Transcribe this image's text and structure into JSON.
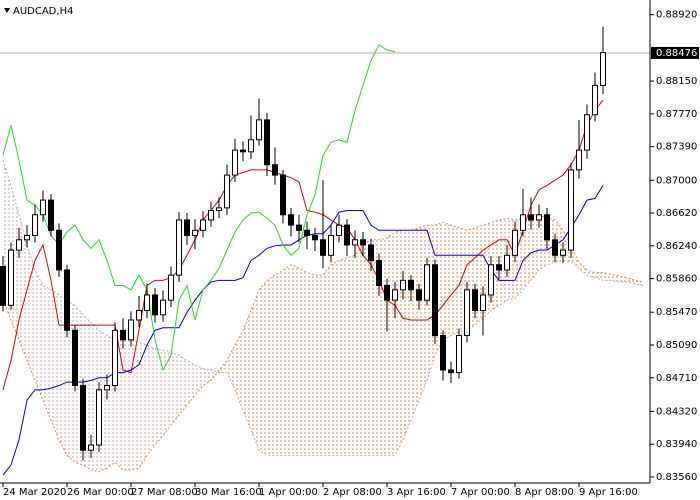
{
  "chart_data": {
    "type": "candlestick",
    "title": "AUDCAD,H4",
    "categories": [
      "24 Mar 2020",
      null,
      null,
      null,
      null,
      null,
      null,
      null,
      "26 Mar 00:00",
      null,
      null,
      null,
      null,
      null,
      null,
      null,
      "27 Mar 08:00",
      null,
      null,
      null,
      null,
      null,
      null,
      null,
      "30 Mar 16:00",
      null,
      null,
      null,
      null,
      null,
      null,
      null,
      "1 Apr 00:00",
      null,
      null,
      null,
      null,
      null,
      null,
      null,
      "2 Apr 08:00",
      null,
      null,
      null,
      null,
      null,
      null,
      null,
      "3 Apr 16:00",
      null,
      null,
      null,
      null,
      null,
      null,
      null,
      "7 Apr 00:00",
      null,
      null,
      null,
      null,
      null,
      null,
      null,
      "8 Apr 08:00",
      null,
      null,
      null,
      null,
      null,
      null,
      null,
      "9 Apr 16:00",
      null,
      null,
      null,
      null,
      null,
      null,
      null,
      null
    ],
    "open": [
      0.86,
      0.8555,
      0.8619,
      0.8631,
      0.8636,
      0.866,
      0.8677,
      0.8642,
      0.8596,
      0.8526,
      0.8462,
      0.8387,
      0.8393,
      0.8457,
      0.8462,
      0.8526,
      0.8515,
      0.8538,
      0.8549,
      0.8567,
      0.8544,
      0.8561,
      0.859,
      0.8654,
      0.8636,
      0.8642,
      0.8654,
      0.8665,
      0.8668,
      0.8706,
      0.8735,
      0.8733,
      0.8747,
      0.877,
      0.8718,
      0.8706,
      0.866,
      0.8648,
      0.8642,
      0.8636,
      0.8631,
      0.8613,
      0.8636,
      0.8648,
      0.8625,
      0.8631,
      0.8625,
      0.8607,
      0.8578,
      0.8561,
      0.8573,
      0.8584,
      0.8573,
      0.8561,
      0.8602,
      0.852,
      0.848,
      0.8477,
      0.852,
      0.8573,
      0.8549,
      0.8567,
      0.8602,
      0.8596,
      0.8613,
      0.8642,
      0.866,
      0.8654,
      0.866,
      0.8631,
      0.8613,
      0.8619,
      0.8712,
      0.8735,
      0.8776,
      0.881,
      null,
      null,
      null,
      null,
      null
    ],
    "high": [
      0.8612,
      0.8628,
      0.8645,
      0.8648,
      0.8672,
      0.8688,
      0.8684,
      0.865,
      0.8602,
      0.8532,
      0.847,
      0.8405,
      0.8466,
      0.8475,
      0.8535,
      0.854,
      0.8548,
      0.8566,
      0.858,
      0.8575,
      0.8572,
      0.86,
      0.8663,
      0.8662,
      0.8655,
      0.8664,
      0.8675,
      0.868,
      0.8718,
      0.8748,
      0.8745,
      0.8775,
      0.8795,
      0.8778,
      0.8738,
      0.8712,
      0.8668,
      0.866,
      0.8652,
      0.8645,
      0.87,
      0.8648,
      0.866,
      0.8655,
      0.8642,
      0.864,
      0.8632,
      0.8615,
      0.8586,
      0.8582,
      0.8595,
      0.859,
      0.858,
      0.861,
      0.8608,
      0.8526,
      0.849,
      0.8528,
      0.8582,
      0.858,
      0.8577,
      0.8612,
      0.8612,
      0.8625,
      0.8652,
      0.869,
      0.868,
      0.8672,
      0.8668,
      0.8638,
      0.8628,
      0.872,
      0.877,
      0.8788,
      0.8825,
      0.8878,
      null,
      null,
      null,
      null,
      null
    ],
    "low": [
      0.8548,
      0.855,
      0.861,
      0.8622,
      0.8628,
      0.8652,
      0.8635,
      0.8588,
      0.8518,
      0.8455,
      0.8375,
      0.8378,
      0.8385,
      0.8446,
      0.8455,
      0.8505,
      0.8507,
      0.853,
      0.854,
      0.8535,
      0.8536,
      0.8553,
      0.8582,
      0.8625,
      0.862,
      0.8634,
      0.8646,
      0.8656,
      0.866,
      0.8698,
      0.8722,
      0.8725,
      0.874,
      0.8705,
      0.8695,
      0.865,
      0.8635,
      0.8628,
      0.862,
      0.8618,
      0.8598,
      0.8605,
      0.8628,
      0.8612,
      0.861,
      0.8612,
      0.8595,
      0.8566,
      0.8525,
      0.854,
      0.8562,
      0.856,
      0.855,
      0.8555,
      0.851,
      0.8468,
      0.8465,
      0.847,
      0.8512,
      0.854,
      0.852,
      0.8558,
      0.8585,
      0.8588,
      0.8605,
      0.8635,
      0.8643,
      0.8645,
      0.862,
      0.8605,
      0.8604,
      0.861,
      0.8702,
      0.8725,
      0.8768,
      0.88,
      null,
      null,
      null,
      null,
      null
    ],
    "close": [
      0.8555,
      0.8619,
      0.8631,
      0.8636,
      0.866,
      0.8677,
      0.8642,
      0.8596,
      0.8526,
      0.8462,
      0.8387,
      0.8393,
      0.8457,
      0.8462,
      0.8526,
      0.8515,
      0.8538,
      0.8549,
      0.8567,
      0.8544,
      0.8561,
      0.859,
      0.8654,
      0.8636,
      0.8642,
      0.8654,
      0.8665,
      0.8668,
      0.8706,
      0.8735,
      0.8733,
      0.8747,
      0.877,
      0.8718,
      0.8706,
      0.866,
      0.8648,
      0.8642,
      0.8636,
      0.8631,
      0.8613,
      0.8636,
      0.8648,
      0.8625,
      0.8631,
      0.8625,
      0.8607,
      0.8578,
      0.8561,
      0.8573,
      0.8584,
      0.8573,
      0.8561,
      0.8602,
      0.852,
      0.848,
      0.8477,
      0.852,
      0.8573,
      0.8549,
      0.8567,
      0.8602,
      0.8596,
      0.8613,
      0.8642,
      0.866,
      0.8654,
      0.866,
      0.8631,
      0.8613,
      0.8619,
      0.8712,
      0.8735,
      0.8776,
      0.881,
      0.8848,
      null,
      null,
      null,
      null,
      null
    ],
    "up_color": "#ffffff",
    "down_color": "#000000",
    "wick_color": "#000000",
    "series": [
      {
        "color": "#dd0000",
        "values": [
          0.8457,
          0.8491,
          0.8538,
          0.8573,
          0.8607,
          0.8625,
          0.8584,
          0.8532,
          0.8532,
          0.8532,
          0.8532,
          0.8532,
          0.8532,
          0.8532,
          0.8532,
          0.848,
          0.8477,
          0.8526,
          0.8578,
          0.8584,
          0.8584,
          0.8587,
          0.8596,
          0.8613,
          0.8631,
          0.8654,
          0.8665,
          0.8677,
          0.8694,
          0.8706,
          0.8709,
          0.8712,
          0.8712,
          0.8712,
          0.8709,
          0.8706,
          0.8703,
          0.8698,
          0.8665,
          0.8663,
          0.866,
          0.8654,
          0.8648,
          0.8645,
          0.8631,
          0.8613,
          0.8602,
          0.8584,
          0.8561,
          0.8555,
          0.854,
          0.8538,
          0.8538,
          0.8538,
          0.8544,
          0.8555,
          0.8567,
          0.8578,
          0.8602,
          0.861,
          0.8619,
          0.8625,
          0.8631,
          0.8631,
          0.8613,
          0.8642,
          0.8671,
          0.8689,
          0.8694,
          0.87,
          0.8706,
          0.8718,
          0.8735,
          0.8764,
          0.8781,
          0.8793,
          null,
          null,
          null,
          null,
          null
        ]
      },
      {
        "color": "#0000cc",
        "values": [
          0.8358,
          0.837,
          0.8399,
          0.8445,
          0.8457,
          0.8457,
          0.8459,
          0.8462,
          0.8466,
          0.8466,
          0.8466,
          0.8468,
          0.8471,
          0.8471,
          0.8477,
          0.8477,
          0.848,
          0.8486,
          0.8509,
          0.8526,
          0.8529,
          0.8529,
          0.8529,
          0.8547,
          0.8561,
          0.8573,
          0.8582,
          0.8584,
          0.8584,
          0.8584,
          0.8587,
          0.8607,
          0.8613,
          0.8621,
          0.8624,
          0.8625,
          0.8625,
          0.8631,
          0.8636,
          0.8638,
          0.8638,
          0.8648,
          0.8663,
          0.8665,
          0.8665,
          0.8665,
          0.8648,
          0.8642,
          0.8642,
          0.8642,
          0.8642,
          0.8642,
          0.8642,
          0.8642,
          0.8613,
          0.8613,
          0.8613,
          0.8613,
          0.8613,
          0.8613,
          0.8613,
          0.8596,
          0.8584,
          0.8584,
          0.8584,
          0.8607,
          0.8616,
          0.8619,
          0.8619,
          0.8625,
          0.8631,
          0.8645,
          0.866,
          0.8677,
          0.8679,
          0.8694,
          null,
          null,
          null,
          null,
          null
        ]
      },
      {
        "color": "#22dd22",
        "values": [
          0.8729,
          0.8764,
          0.8723,
          0.8677,
          0.8671,
          0.866,
          0.8636,
          0.8625,
          0.864,
          0.8648,
          0.8631,
          0.8621,
          0.8631,
          0.8607,
          0.8578,
          0.8578,
          0.8573,
          0.859,
          0.8573,
          0.8515,
          0.848,
          0.8497,
          0.8561,
          0.8578,
          0.8538,
          0.8573,
          0.8584,
          0.8598,
          0.8619,
          0.864,
          0.8654,
          0.8662,
          0.8663,
          0.8656,
          0.8648,
          0.8625,
          0.8613,
          0.8621,
          0.866,
          0.8683,
          0.8729,
          0.8744,
          0.8747,
          0.8744,
          0.8781,
          0.881,
          0.8839,
          0.8857,
          0.8851,
          0.8849,
          null,
          null,
          null,
          null,
          null,
          null,
          null,
          null,
          null,
          null,
          null,
          null,
          null,
          null,
          null,
          null,
          null,
          null,
          null,
          null,
          null,
          null,
          null,
          null,
          null,
          null,
          null,
          null,
          null,
          null,
          null
        ]
      }
    ],
    "cloud": {
      "span_a": {
        "color": "#e08a4a",
        "values": [
          0.8561,
          0.8538,
          0.8515,
          0.8491,
          0.8468,
          0.8445,
          0.8422,
          0.8399,
          0.8381,
          0.8373,
          0.837,
          0.8364,
          0.8362,
          0.8366,
          0.8373,
          0.8364,
          0.8364,
          0.8366,
          0.8381,
          0.8393,
          0.8404,
          0.8416,
          0.8428,
          0.8439,
          0.8451,
          0.8462,
          0.8468,
          0.848,
          0.8491,
          0.8509,
          0.8526,
          0.8549,
          0.8573,
          0.8584,
          0.859,
          0.8596,
          0.8602,
          0.8598,
          0.8593,
          0.859,
          0.859,
          0.8602,
          0.8607,
          0.861,
          0.8613,
          0.8625,
          0.8631,
          0.8631,
          0.8633,
          0.864,
          0.8642,
          0.8642,
          0.8645,
          0.8648,
          0.8648,
          0.8651,
          0.8648,
          0.8645,
          0.8642,
          0.8645,
          0.8648,
          0.8651,
          0.8654,
          0.8656,
          0.8654,
          0.8656,
          0.866,
          0.866,
          0.8656,
          0.8654,
          0.8642,
          0.8625,
          0.8605,
          0.8596,
          0.8593,
          0.8593,
          0.8591,
          0.8589,
          0.8587,
          0.8584,
          0.8582
        ]
      },
      "span_b": {
        "color": "#c9a3a3",
        "values": [
          0.8723,
          0.8694,
          0.866,
          0.8625,
          0.8596,
          0.8578,
          0.8573,
          0.8567,
          0.8561,
          0.8555,
          0.8544,
          0.8535,
          0.8526,
          0.852,
          0.8515,
          0.8515,
          0.8515,
          0.8512,
          0.8509,
          0.8505,
          0.8503,
          0.8501,
          0.8497,
          0.8491,
          0.8486,
          0.8482,
          0.848,
          0.8477,
          0.8477,
          0.8457,
          0.8433,
          0.841,
          0.8387,
          0.8381,
          0.8381,
          0.8381,
          0.8381,
          0.8381,
          0.8381,
          0.8381,
          0.8381,
          0.8381,
          0.8381,
          0.8381,
          0.8381,
          0.8381,
          0.8381,
          0.8381,
          0.8381,
          0.8381,
          0.8399,
          0.8422,
          0.8445,
          0.8468,
          0.8497,
          0.8515,
          0.852,
          0.8524,
          0.8526,
          0.8532,
          0.854,
          0.8549,
          0.8555,
          0.8561,
          0.8563,
          0.8573,
          0.8584,
          0.8596,
          0.8602,
          0.8605,
          0.8607,
          0.8605,
          0.8598,
          0.859,
          0.8587,
          0.8584,
          0.8584,
          0.8582,
          0.8582,
          0.858,
          0.8578
        ]
      }
    },
    "last_price": 0.88476,
    "ylim": [
      0.8349,
      0.8909
    ],
    "yticks": [
      {
        "value": 0.8892,
        "label": "0.88920"
      },
      {
        "value": 0.8815,
        "label": "0.88150"
      },
      {
        "value": 0.8777,
        "label": "0.87770"
      },
      {
        "value": 0.8739,
        "label": "0.87390"
      },
      {
        "value": 0.87,
        "label": "0.87000"
      },
      {
        "value": 0.8662,
        "label": "0.86620"
      },
      {
        "value": 0.8624,
        "label": "0.86240"
      },
      {
        "value": 0.8586,
        "label": "0.85860"
      },
      {
        "value": 0.8547,
        "label": "0.85470"
      },
      {
        "value": 0.8509,
        "label": "0.85090"
      },
      {
        "value": 0.8471,
        "label": "0.84710"
      },
      {
        "value": 0.8432,
        "label": "0.84320"
      },
      {
        "value": 0.8394,
        "label": "0.83940"
      },
      {
        "value": 0.8356,
        "label": "0.83560"
      }
    ],
    "grid": false
  }
}
